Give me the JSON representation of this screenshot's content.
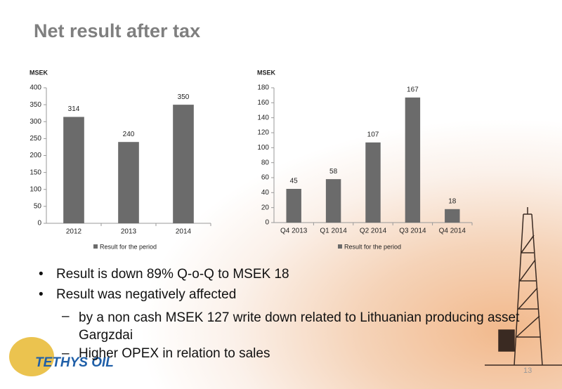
{
  "title": "Net result after tax",
  "chart_data": [
    {
      "type": "bar",
      "y_axis_label": "MSEK",
      "categories": [
        "2012",
        "2013",
        "2014"
      ],
      "series": [
        {
          "name": "Result for the period",
          "color": "#6b6b6b",
          "values": [
            314,
            240,
            350
          ]
        }
      ],
      "ylim": [
        0,
        400
      ],
      "yticks": [
        0,
        50,
        100,
        150,
        200,
        250,
        300,
        350,
        400
      ]
    },
    {
      "type": "bar",
      "y_axis_label": "MSEK",
      "categories": [
        "Q4 2013",
        "Q1 2014",
        "Q2 2014",
        "Q3 2014",
        "Q4 2014"
      ],
      "series": [
        {
          "name": "Result for the period",
          "color": "#6b6b6b",
          "values": [
            45,
            58,
            107,
            167,
            18
          ]
        }
      ],
      "ylim": [
        0,
        180
      ],
      "yticks": [
        0,
        20,
        40,
        60,
        80,
        100,
        120,
        140,
        160,
        180
      ]
    }
  ],
  "bullets": [
    {
      "text": "Result is down 89% Q-o-Q to MSEK 18"
    },
    {
      "text": "Result was negatively affected",
      "sub": [
        "by a non cash MSEK 127 write down related to Lithuanian producing asset Gargzdai",
        "Higher OPEX in relation to sales"
      ]
    }
  ],
  "logo": "TETHYS OIL",
  "page_number": "13"
}
